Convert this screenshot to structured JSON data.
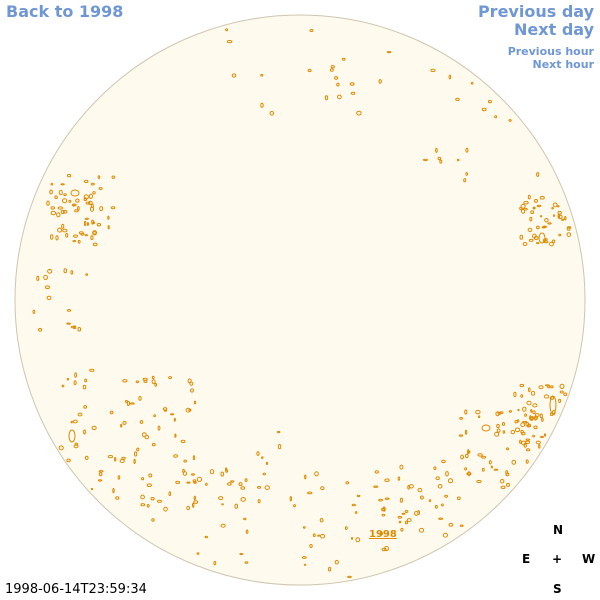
{
  "nav": {
    "back_label": "Back to 1998",
    "prev_day_label": "Previous day",
    "next_day_label": "Next day",
    "prev_hour_label": "Previous hour",
    "next_hour_label": "Next hour"
  },
  "compass": {
    "north": "N",
    "east": "E",
    "center": "+",
    "west": "W",
    "south": "S"
  },
  "timestamp": "1998-06-14T23:59:34",
  "region_label": "1998",
  "colors": {
    "link": "#6f97d6",
    "disk_fill": "#fffaee",
    "disk_edge": "#cfc5b0",
    "contour": "#e08a00"
  }
}
